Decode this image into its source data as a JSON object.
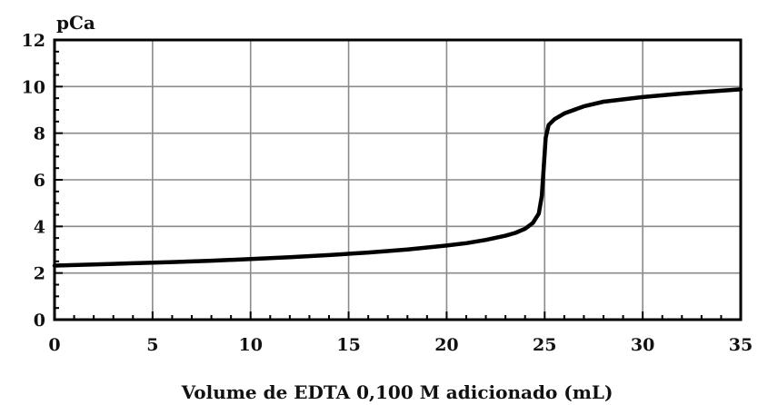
{
  "chart_data": {
    "type": "line",
    "title": "",
    "ylabel": "pCa",
    "xlabel": "Volume de EDTA 0,100 M adicionado (mL)",
    "xlim": [
      0,
      35
    ],
    "ylim": [
      0,
      12
    ],
    "xticks": [
      0,
      5,
      10,
      15,
      20,
      25,
      30,
      35
    ],
    "yticks": [
      0,
      2,
      4,
      6,
      8,
      10,
      12
    ],
    "grid": true,
    "series": [
      {
        "color": "#000000",
        "points": [
          [
            0,
            2.32
          ],
          [
            2,
            2.37
          ],
          [
            4,
            2.42
          ],
          [
            6,
            2.47
          ],
          [
            8,
            2.53
          ],
          [
            10,
            2.6
          ],
          [
            12,
            2.68
          ],
          [
            14,
            2.77
          ],
          [
            16,
            2.88
          ],
          [
            18,
            3.01
          ],
          [
            20,
            3.18
          ],
          [
            21,
            3.28
          ],
          [
            22,
            3.42
          ],
          [
            23,
            3.6
          ],
          [
            23.5,
            3.72
          ],
          [
            24,
            3.9
          ],
          [
            24.4,
            4.15
          ],
          [
            24.7,
            4.55
          ],
          [
            24.85,
            5.3
          ],
          [
            24.95,
            6.5
          ],
          [
            25.05,
            7.8
          ],
          [
            25.2,
            8.35
          ],
          [
            25.5,
            8.6
          ],
          [
            26,
            8.85
          ],
          [
            27,
            9.15
          ],
          [
            28,
            9.35
          ],
          [
            30,
            9.55
          ],
          [
            32,
            9.7
          ],
          [
            35,
            9.88
          ]
        ]
      }
    ]
  }
}
